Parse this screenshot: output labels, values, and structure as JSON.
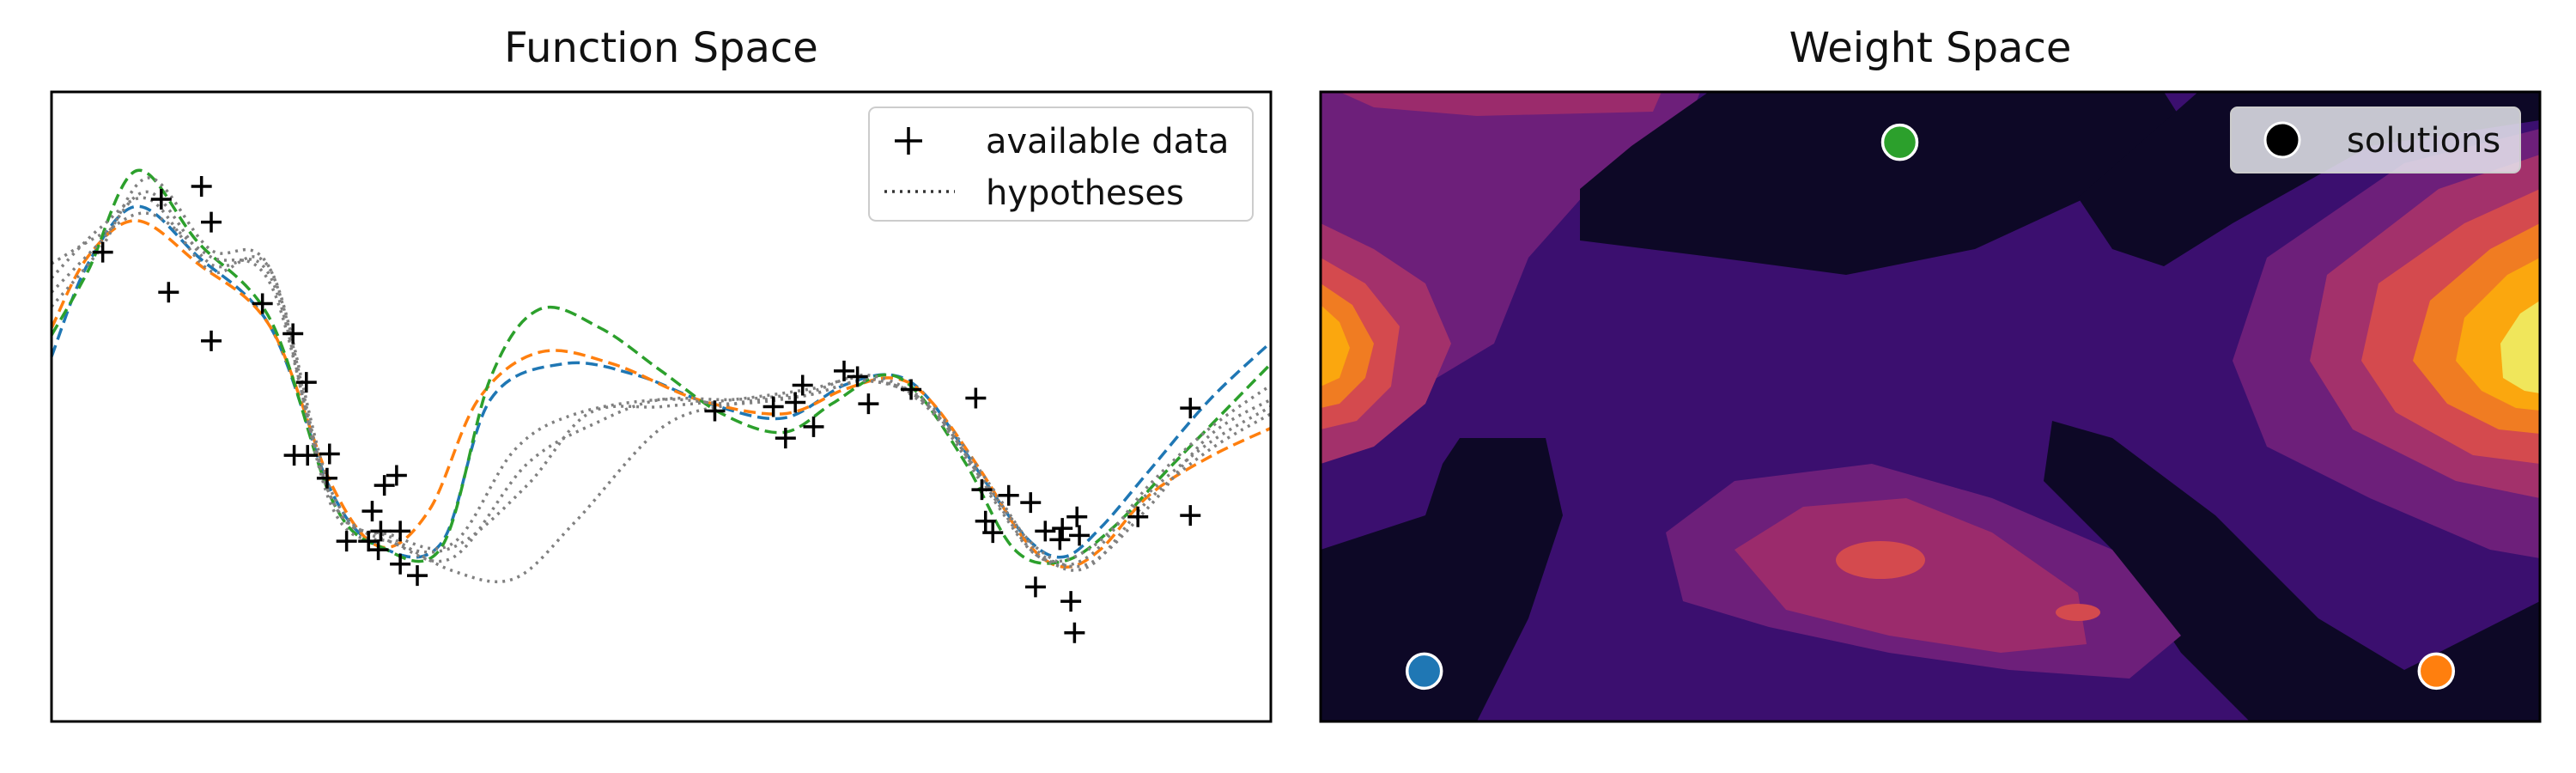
{
  "chart_data": [
    {
      "type": "scatter",
      "title": "Function Space",
      "xlabel": "",
      "ylabel": "",
      "xlim": [
        0,
        10
      ],
      "ylim": [
        -2.2,
        2.2
      ],
      "axes_ticks": false,
      "legend": {
        "placement": "top-right",
        "entries": [
          {
            "label": "available data",
            "marker": "plus"
          },
          {
            "label": "hypotheses",
            "line": "dotted"
          }
        ]
      },
      "points": [
        [
          0.42,
          1.08
        ],
        [
          0.9,
          1.45
        ],
        [
          0.96,
          0.8
        ],
        [
          1.23,
          1.54
        ],
        [
          1.31,
          1.29
        ],
        [
          1.31,
          0.46
        ],
        [
          1.73,
          0.72
        ],
        [
          1.98,
          0.51
        ],
        [
          2.09,
          0.17
        ],
        [
          1.99,
          -0.34
        ],
        [
          2.1,
          -0.34
        ],
        [
          2.26,
          -0.5
        ],
        [
          2.28,
          -0.33
        ],
        [
          2.42,
          -0.94
        ],
        [
          2.6,
          -0.94
        ],
        [
          2.63,
          -0.73
        ],
        [
          2.68,
          -1.0
        ],
        [
          2.7,
          -0.87
        ],
        [
          2.73,
          -0.55
        ],
        [
          2.83,
          -0.48
        ],
        [
          2.86,
          -1.1
        ],
        [
          2.86,
          -0.87
        ],
        [
          3.0,
          -1.18
        ],
        [
          5.44,
          -0.03
        ],
        [
          5.92,
          0.0
        ],
        [
          6.02,
          -0.22
        ],
        [
          6.1,
          0.03
        ],
        [
          6.16,
          0.15
        ],
        [
          6.25,
          -0.14
        ],
        [
          6.5,
          0.25
        ],
        [
          6.61,
          0.21
        ],
        [
          6.7,
          0.02
        ],
        [
          7.05,
          0.12
        ],
        [
          7.58,
          0.06
        ],
        [
          7.63,
          -0.58
        ],
        [
          7.66,
          -0.8
        ],
        [
          7.72,
          -0.88
        ],
        [
          7.85,
          -0.62
        ],
        [
          8.03,
          -0.67
        ],
        [
          8.07,
          -1.26
        ],
        [
          8.15,
          -0.87
        ],
        [
          8.27,
          -0.93
        ],
        [
          8.29,
          -0.85
        ],
        [
          8.36,
          -1.36
        ],
        [
          8.39,
          -1.58
        ],
        [
          8.41,
          -0.77
        ],
        [
          8.43,
          -0.9
        ],
        [
          8.91,
          -0.77
        ],
        [
          9.34,
          -0.01
        ],
        [
          9.34,
          -0.76
        ]
      ],
      "series": [
        {
          "color": "#1f77b4",
          "style": "dashed",
          "x": [
            0,
            0.3,
            0.7,
            1.2,
            1.8,
            2.3,
            2.7,
            3.2,
            3.6,
            4.2,
            4.8,
            5.4,
            6.0,
            6.5,
            6.9,
            7.2,
            7.6,
            8.0,
            8.3,
            8.6,
            9.0,
            9.5,
            10.0
          ],
          "y": [
            0.35,
            1.0,
            1.4,
            1.05,
            0.55,
            -0.6,
            -0.98,
            -0.95,
            0.05,
            0.3,
            0.22,
            0.02,
            -0.08,
            0.15,
            0.22,
            0.05,
            -0.45,
            -0.92,
            -1.05,
            -0.85,
            -0.45,
            0.05,
            0.45
          ]
        },
        {
          "color": "#ff7f0e",
          "style": "dashed",
          "x": [
            0,
            0.3,
            0.7,
            1.2,
            1.8,
            2.3,
            2.7,
            3.1,
            3.5,
            4.0,
            4.6,
            5.3,
            6.0,
            6.5,
            6.9,
            7.2,
            7.6,
            8.0,
            8.3,
            8.6,
            9.0,
            9.5,
            10.0
          ],
          "y": [
            0.55,
            1.05,
            1.3,
            1.0,
            0.55,
            -0.55,
            -0.98,
            -0.72,
            0.05,
            0.38,
            0.3,
            0.05,
            -0.05,
            0.12,
            0.2,
            0.05,
            -0.42,
            -0.95,
            -1.12,
            -1.0,
            -0.62,
            -0.35,
            -0.15
          ]
        },
        {
          "color": "#2ca02c",
          "style": "dashed",
          "x": [
            0,
            0.3,
            0.7,
            1.2,
            1.8,
            2.3,
            2.7,
            3.2,
            3.6,
            4.0,
            4.5,
            5.0,
            5.5,
            6.0,
            6.4,
            6.8,
            7.1,
            7.5,
            7.9,
            8.3,
            8.7,
            9.2,
            10.0
          ],
          "y": [
            0.5,
            0.95,
            1.65,
            1.15,
            0.6,
            -0.65,
            -0.98,
            -0.98,
            0.2,
            0.68,
            0.55,
            0.25,
            -0.05,
            -0.18,
            0.02,
            0.22,
            0.1,
            -0.4,
            -1.0,
            -1.08,
            -0.85,
            -0.4,
            0.3
          ]
        },
        {
          "color": "#808080",
          "style": "dotted",
          "x": [
            0,
            0.4,
            0.8,
            1.3,
            1.8,
            2.3,
            2.8,
            3.3,
            3.8,
            4.3,
            5.0,
            5.6,
            6.2,
            6.7,
            7.2,
            7.7,
            8.1,
            8.5,
            9.0,
            9.5,
            10.0
          ],
          "y": [
            1.0,
            1.2,
            1.35,
            1.05,
            0.85,
            -0.65,
            -0.9,
            -0.95,
            -0.3,
            -0.05,
            0.05,
            0.02,
            0.08,
            0.18,
            0.0,
            -0.6,
            -1.05,
            -1.05,
            -0.55,
            -0.15,
            0.15
          ]
        },
        {
          "color": "#808080",
          "style": "dotted",
          "x": [
            0,
            0.4,
            0.8,
            1.3,
            1.8,
            2.3,
            2.8,
            3.3,
            3.9,
            4.5,
            5.0,
            5.6,
            6.2,
            6.7,
            7.2,
            7.7,
            8.1,
            8.5,
            9.0,
            9.5,
            10.0
          ],
          "y": [
            0.8,
            1.15,
            1.5,
            1.0,
            0.9,
            -0.7,
            -0.95,
            -1.05,
            -0.4,
            -0.1,
            0.05,
            0.05,
            0.1,
            0.22,
            0.0,
            -0.58,
            -1.0,
            -1.1,
            -0.7,
            -0.2,
            0.05
          ]
        },
        {
          "color": "#808080",
          "style": "dotted",
          "x": [
            0,
            0.4,
            0.8,
            1.3,
            1.8,
            2.3,
            2.8,
            3.3,
            3.9,
            4.4,
            5.0,
            5.6,
            6.2,
            6.7,
            7.2,
            7.7,
            8.1,
            8.5,
            9.0,
            9.5,
            10.0
          ],
          "y": [
            0.9,
            1.25,
            1.45,
            0.95,
            0.95,
            -0.6,
            -0.95,
            -0.98,
            -0.55,
            -0.05,
            0.0,
            0.05,
            0.12,
            0.2,
            -0.02,
            -0.62,
            -1.05,
            -1.0,
            -0.6,
            -0.25,
            0.0
          ]
        },
        {
          "color": "#808080",
          "style": "dotted",
          "x": [
            0,
            0.4,
            0.8,
            1.3,
            1.8,
            2.3,
            2.8,
            3.3,
            3.8,
            4.3,
            5.0,
            5.6,
            6.2,
            6.7,
            7.2,
            7.7,
            8.1,
            8.5,
            9.0,
            9.5,
            10.0
          ],
          "y": [
            0.7,
            1.1,
            1.6,
            1.1,
            0.95,
            -0.65,
            -0.92,
            -1.15,
            -1.2,
            -0.8,
            -0.15,
            0.02,
            0.08,
            0.18,
            0.02,
            -0.55,
            -1.02,
            -1.12,
            -0.65,
            -0.3,
            -0.05
          ]
        }
      ]
    },
    {
      "type": "heatmap",
      "title": "Weight Space",
      "xlabel": "",
      "ylabel": "",
      "xlim": [
        0,
        10
      ],
      "ylim": [
        0,
        10
      ],
      "axes_ticks": false,
      "colormap": "inferno",
      "legend": {
        "placement": "top-right",
        "entries": [
          {
            "label": "solutions",
            "marker": "circle",
            "color": "#000000"
          }
        ]
      },
      "solutions": [
        {
          "x": 0.85,
          "y": 0.8,
          "color": "#1f77b4"
        },
        {
          "x": 4.75,
          "y": 9.2,
          "color": "#2ca02c"
        },
        {
          "x": 9.15,
          "y": 0.8,
          "color": "#ff7f0e"
        }
      ]
    }
  ]
}
